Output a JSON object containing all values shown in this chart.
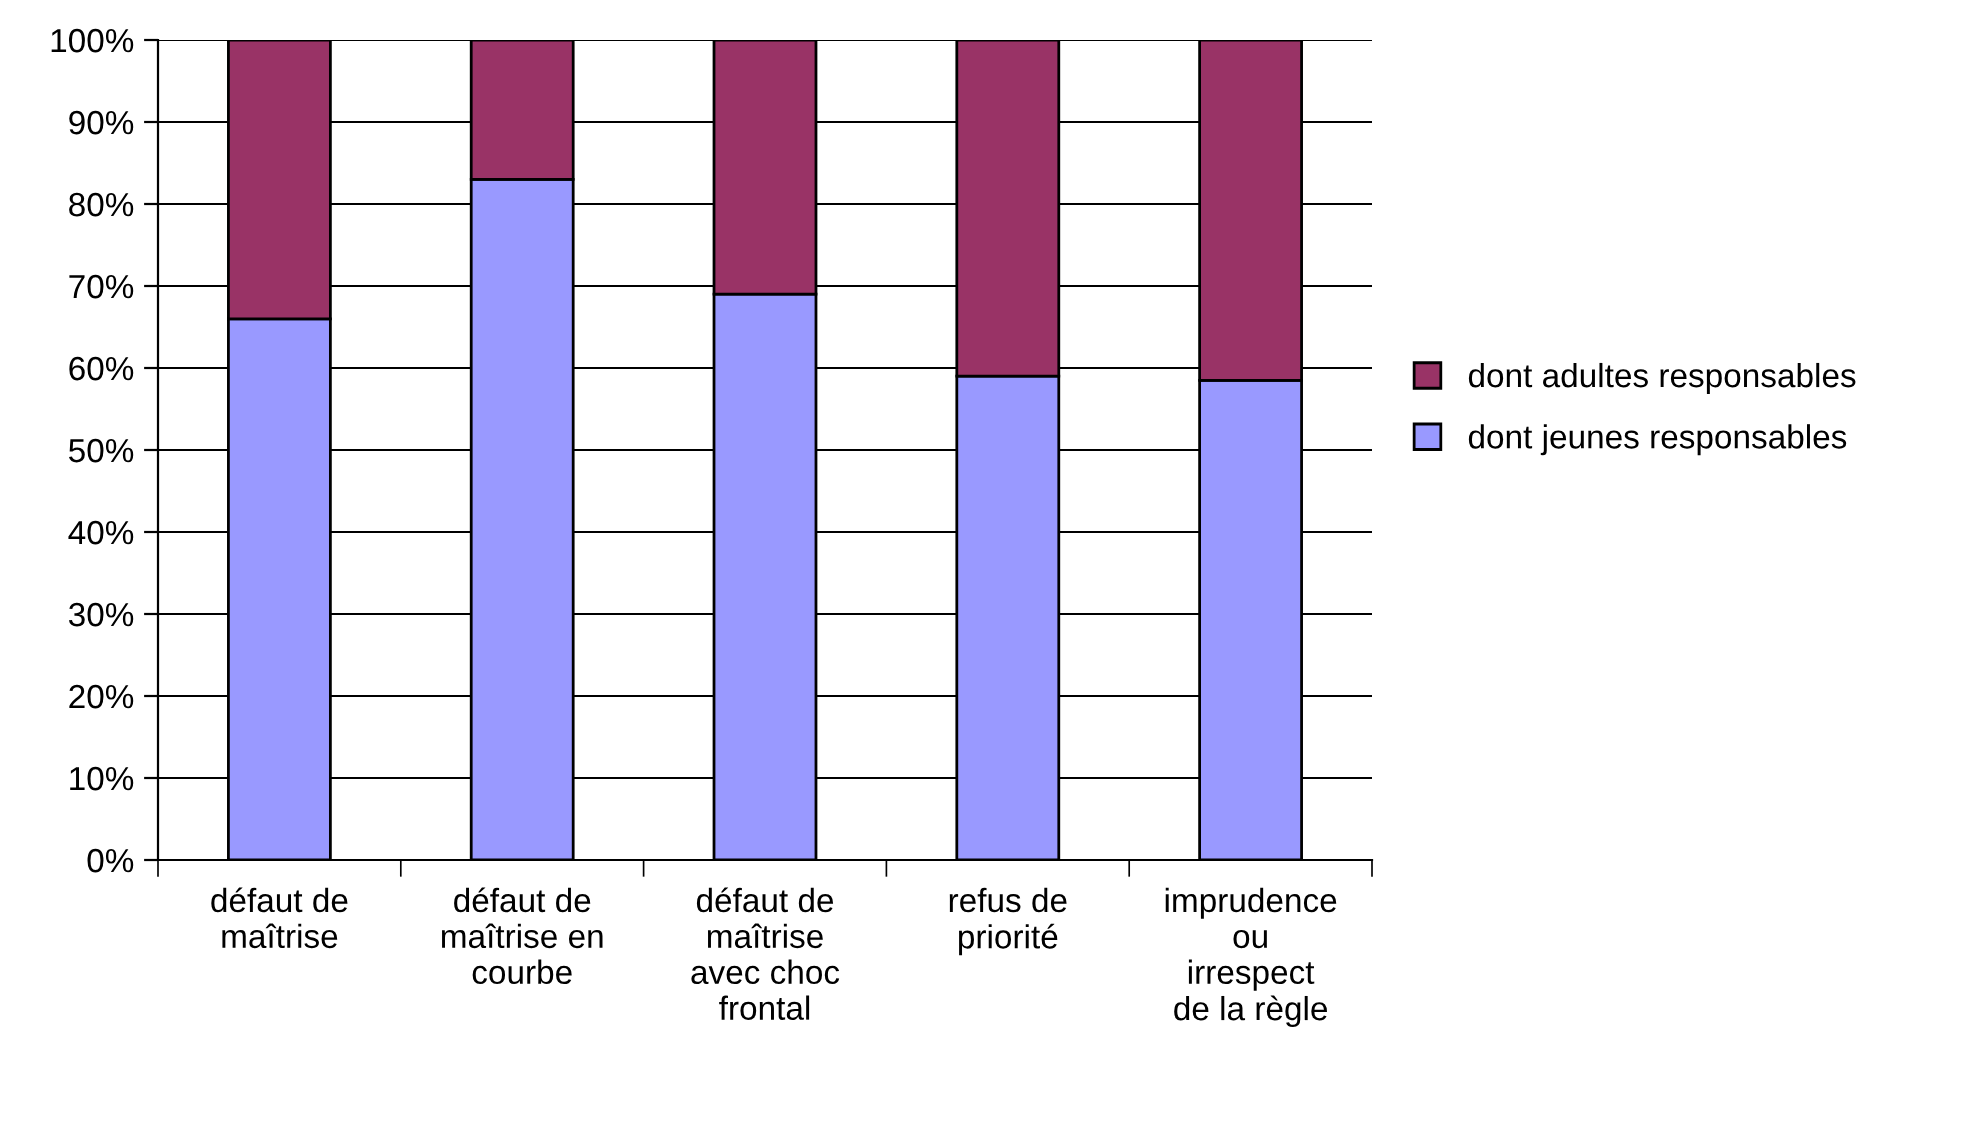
{
  "chart_data": {
    "type": "bar",
    "stacked": true,
    "categories": [
      "défaut de\nmaîtrise",
      "défaut de\nmaîtrise en\ncourbe",
      "défaut de\nmaîtrise\navec choc\nfrontal",
      "refus de\npriorité",
      "imprudence\nou\nirrespect\nde la règle"
    ],
    "series": [
      {
        "name": "dont jeunes responsables",
        "color": "#9999ff",
        "values": [
          66,
          83,
          69,
          59,
          58.5
        ]
      },
      {
        "name": "dont adultes responsables",
        "color": "#993366",
        "values": [
          34,
          17,
          31,
          41,
          41.5
        ]
      }
    ],
    "ylim": [
      0,
      100
    ],
    "yticks": [
      {
        "value": 0,
        "label": "0%"
      },
      {
        "value": 10,
        "label": "10%"
      },
      {
        "value": 20,
        "label": "20%"
      },
      {
        "value": 30,
        "label": "30%"
      },
      {
        "value": 40,
        "label": "40%"
      },
      {
        "value": 50,
        "label": "50%"
      },
      {
        "value": 60,
        "label": "60%"
      },
      {
        "value": 70,
        "label": "70%"
      },
      {
        "value": 80,
        "label": "80%"
      },
      {
        "value": 90,
        "label": "90%"
      },
      {
        "value": 100,
        "label": "100%"
      }
    ],
    "grid": "y",
    "legend": "right"
  }
}
